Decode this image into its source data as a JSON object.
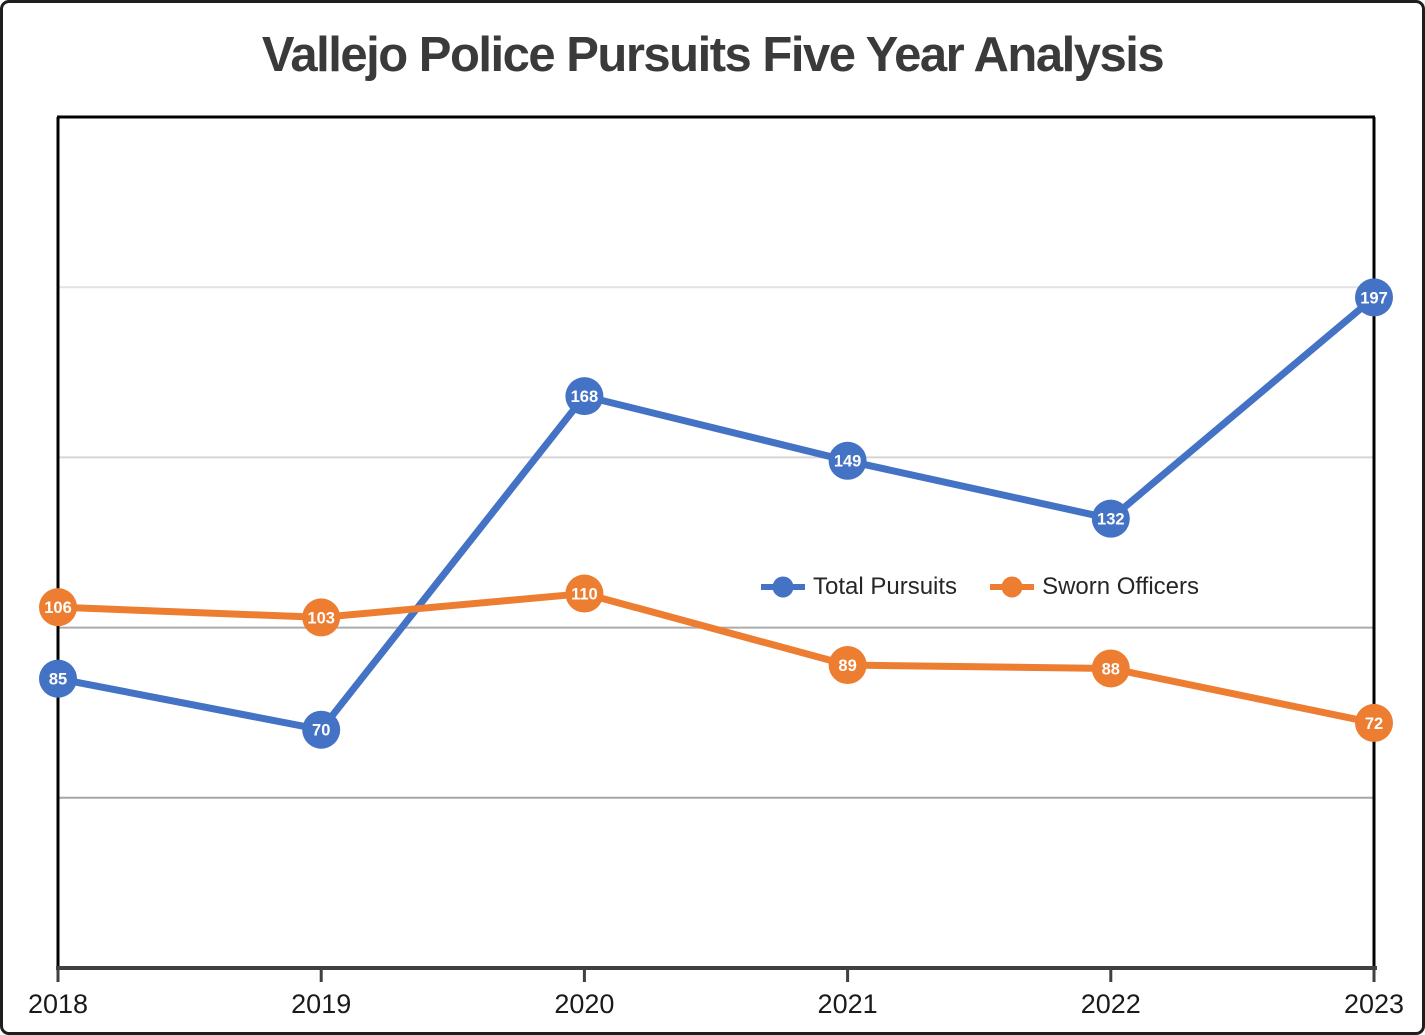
{
  "chart_data": {
    "type": "line",
    "title": "Vallejo Police Pursuits Five Year Analysis",
    "categories": [
      "2018",
      "2019",
      "2020",
      "2021",
      "2022",
      "2023"
    ],
    "series": [
      {
        "name": "Total Pursuits",
        "color": "#4472C4",
        "values": [
          85,
          70,
          168,
          149,
          132,
          197
        ]
      },
      {
        "name": "Sworn Officers",
        "color": "#ED7D31",
        "values": [
          106,
          103,
          110,
          89,
          88,
          72
        ]
      }
    ],
    "ylim": [
      0,
      250
    ],
    "y_axis_labels_visible": false,
    "gridlines": [
      {
        "value": 50,
        "color": "#a6a6a6"
      },
      {
        "value": 100,
        "color": "#ababab"
      },
      {
        "value": 150,
        "color": "#d5d5d5"
      },
      {
        "value": 200,
        "color": "#e2e2e2"
      }
    ],
    "legend_position": "inside-middle-right",
    "data_labels_position": "inside-marker",
    "data_label_text_color": "#ffffff",
    "colors": {
      "axis": "#404040",
      "plot_border": "#000000",
      "tick_label": "#1a1a1a",
      "title": "#3a3a3a",
      "legend_text": "#262626"
    }
  }
}
